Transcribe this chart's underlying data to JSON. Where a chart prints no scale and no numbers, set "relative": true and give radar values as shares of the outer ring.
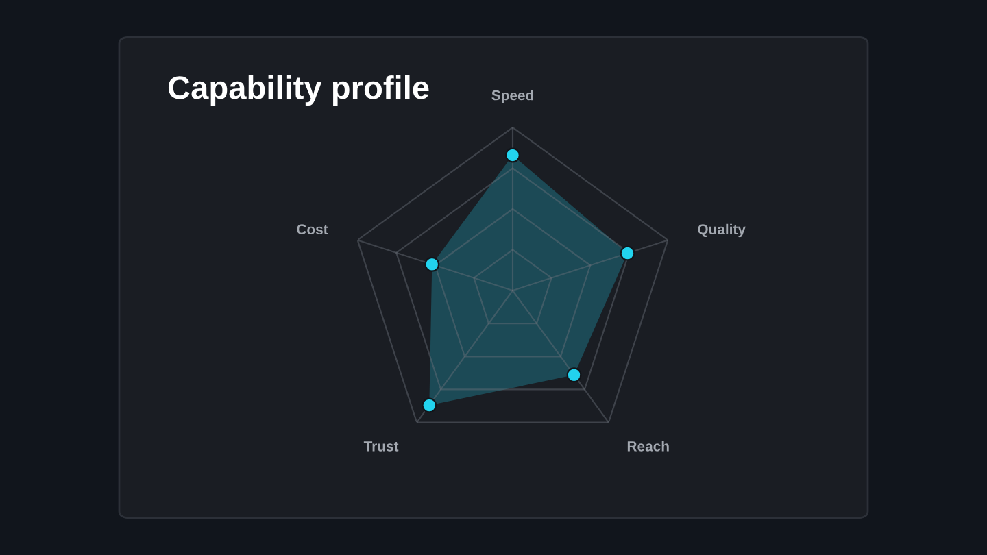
{
  "chart_data": {
    "type": "radar",
    "title": "Capability profile",
    "categories": [
      "Speed",
      "Quality",
      "Reach",
      "Trust",
      "Cost"
    ],
    "relative": true,
    "series": [
      {
        "color": "#22d3ee",
        "values": [
          0.83,
          0.74,
          0.64,
          0.87,
          0.52
        ]
      }
    ],
    "grid": true,
    "marker": "circle"
  }
}
